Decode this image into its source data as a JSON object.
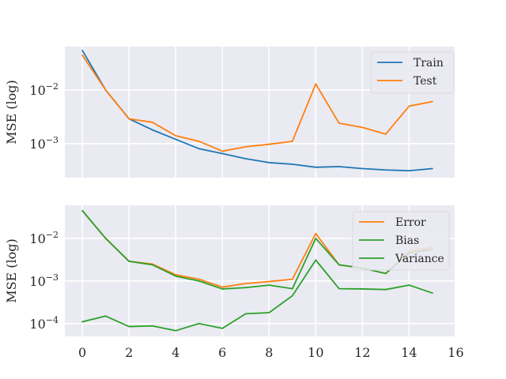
{
  "chart_data": [
    {
      "type": "line",
      "title": "",
      "xlabel": "",
      "ylabel": "MSE (log)",
      "yscale": "log",
      "xlim": [
        -0.75,
        15.95
      ],
      "ylim": [
        0.00023,
        0.065
      ],
      "grid": true,
      "legend_position": "top-right",
      "x": [
        0,
        1,
        2,
        3,
        4,
        5,
        6,
        7,
        8,
        9,
        10,
        11,
        12,
        13,
        14,
        15
      ],
      "yticks": [
        {
          "value": 0.01,
          "base": "10",
          "exp": "−2"
        },
        {
          "value": 0.001,
          "base": "10",
          "exp": "−3"
        }
      ],
      "series": [
        {
          "name": "Train",
          "color": "#1f77b4",
          "values": [
            0.055,
            0.01,
            0.0029,
            0.0018,
            0.0012,
            0.0008,
            0.00065,
            0.00052,
            0.00044,
            0.00041,
            0.00036,
            0.00037,
            0.00034,
            0.00032,
            0.00031,
            0.00034
          ]
        },
        {
          "name": "Test",
          "color": "#ff7f0e",
          "values": [
            0.045,
            0.01,
            0.0029,
            0.0025,
            0.0014,
            0.0011,
            0.00072,
            0.00087,
            0.00097,
            0.0011,
            0.013,
            0.0024,
            0.002,
            0.0015,
            0.005,
            0.0061
          ]
        }
      ]
    },
    {
      "type": "line",
      "title": "",
      "xlabel": "",
      "ylabel": "MSE (log)",
      "yscale": "log",
      "xlim": [
        -0.75,
        15.95
      ],
      "ylim": [
        5e-05,
        0.06
      ],
      "grid": true,
      "legend_position": "top-right",
      "x": [
        0,
        1,
        2,
        3,
        4,
        5,
        6,
        7,
        8,
        9,
        10,
        11,
        12,
        13,
        14,
        15
      ],
      "xticks": [
        0,
        2,
        4,
        6,
        8,
        10,
        12,
        14,
        16
      ],
      "yticks": [
        {
          "value": 0.01,
          "base": "10",
          "exp": "−2"
        },
        {
          "value": 0.001,
          "base": "10",
          "exp": "−3"
        },
        {
          "value": 0.0001,
          "base": "10",
          "exp": "−4"
        }
      ],
      "series": [
        {
          "name": "Error",
          "color": "#ff7f0e",
          "values": [
            0.045,
            0.01,
            0.0029,
            0.0025,
            0.0014,
            0.0011,
            0.00072,
            0.00087,
            0.00097,
            0.0011,
            0.013,
            0.0024,
            0.002,
            0.0015,
            0.005,
            0.0061
          ]
        },
        {
          "name": "Bias",
          "color": "#2ca02c",
          "values": [
            0.045,
            0.01,
            0.0029,
            0.0024,
            0.0013,
            0.001,
            0.00065,
            0.0007,
            0.0008,
            0.00066,
            0.01,
            0.0024,
            0.002,
            0.0015,
            0.0045,
            0.0055
          ]
        },
        {
          "name": "Variance",
          "color": "#2ca02c",
          "values": [
            0.00011,
            0.00015,
            8.5e-05,
            8.8e-05,
            6.8e-05,
            0.0001,
            7.7e-05,
            0.00017,
            0.00018,
            0.00045,
            0.0031,
            0.00066,
            0.00065,
            0.00063,
            0.0008,
            0.00052
          ]
        }
      ]
    }
  ]
}
